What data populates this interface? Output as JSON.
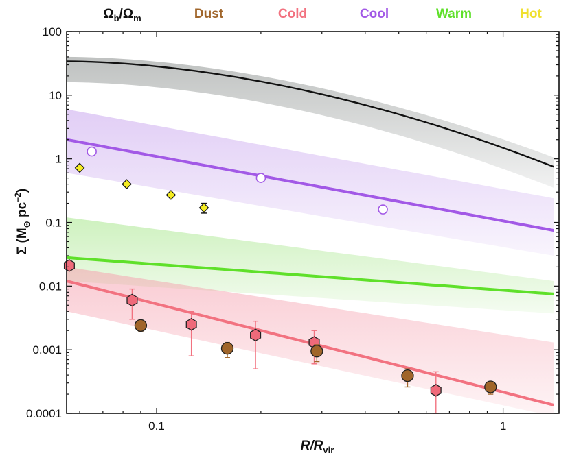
{
  "chart_data": {
    "type": "scatter",
    "x_scale": "log",
    "y_scale": "log",
    "xlim": [
      0.055,
      1.45
    ],
    "ylim": [
      0.0001,
      100
    ],
    "xlabel": {
      "main": "R/R",
      "sub": "vir"
    },
    "ylabel": {
      "main": "Σ (M",
      "sun": "⊙",
      "unit": " pc",
      "sup": "−2",
      "close": ")"
    },
    "x_ticks": [
      {
        "value": 0.1,
        "label": "0.1"
      },
      {
        "value": 1,
        "label": "1"
      }
    ],
    "y_ticks": [
      {
        "value": 100,
        "label": "100"
      },
      {
        "value": 10,
        "label": "10"
      },
      {
        "value": 1,
        "label": "1"
      },
      {
        "value": 0.1,
        "label": "0.1"
      },
      {
        "value": 0.01,
        "label": "0.01"
      },
      {
        "value": 0.001,
        "label": "0.001"
      },
      {
        "value": 0.0001,
        "label": "0.0001"
      }
    ],
    "legend": [
      {
        "label_main": "Ω",
        "label_sub": "b",
        "label_sep": "/Ω",
        "label_sub2": "m",
        "color": "#111111"
      },
      {
        "label": "Dust",
        "color": "#a0652a"
      },
      {
        "label": "Cold",
        "color": "#f27280"
      },
      {
        "label": "Cool",
        "color": "#a259e6"
      },
      {
        "label": "Warm",
        "color": "#5fe02a"
      },
      {
        "label": "Hot",
        "color": "#f0e030"
      }
    ],
    "bands": [
      {
        "name": "baryon-band",
        "color": "#8a8f8d",
        "x": [
          0.055,
          1.4
        ],
        "upper": [
          40,
          1.05
        ],
        "lower": [
          16,
          0.35
        ],
        "shape": "convex"
      },
      {
        "name": "cool-band",
        "color": "#c9a6ee",
        "x": [
          0.055,
          1.4
        ],
        "upper": [
          6.0,
          0.24
        ],
        "lower": [
          0.6,
          0.03
        ]
      },
      {
        "name": "warm-band",
        "color": "#a6e68a",
        "x": [
          0.055,
          1.4
        ],
        "upper": [
          0.12,
          0.012
        ],
        "lower": [
          0.012,
          0.0037
        ]
      },
      {
        "name": "cold-band",
        "color": "#f5a0ae",
        "x": [
          0.055,
          1.4
        ],
        "upper": [
          0.02,
          0.0013
        ],
        "lower": [
          0.004,
          9e-05
        ]
      }
    ],
    "series": [
      {
        "name": "Ωb/Ωm",
        "kind": "line",
        "color": "#111111",
        "width": 2.4,
        "shape": "convex",
        "x": [
          0.055,
          1.4
        ],
        "y": [
          34,
          0.75
        ]
      },
      {
        "name": "Cool",
        "kind": "line",
        "color": "#a259e6",
        "width": 4,
        "x": [
          0.055,
          1.4
        ],
        "y": [
          2.0,
          0.075
        ]
      },
      {
        "name": "Warm",
        "kind": "line",
        "color": "#5fe02a",
        "width": 4,
        "x": [
          0.055,
          1.4
        ],
        "y": [
          0.028,
          0.0075
        ]
      },
      {
        "name": "Cold",
        "kind": "line",
        "color": "#f27280",
        "width": 4,
        "x": [
          0.055,
          1.4
        ],
        "y": [
          0.012,
          0.000135
        ]
      },
      {
        "name": "Hot",
        "kind": "points",
        "marker": "diamond",
        "fill": "#f5ec22",
        "stroke": "#111111",
        "points": [
          {
            "x": 0.06,
            "y": 0.72
          },
          {
            "x": 0.082,
            "y": 0.4
          },
          {
            "x": 0.11,
            "y": 0.27
          },
          {
            "x": 0.137,
            "y": 0.17,
            "err_lo": 0.14,
            "err_hi": 0.2
          }
        ]
      },
      {
        "name": "Cool",
        "kind": "points",
        "marker": "circle-open",
        "fill": "#ffffff",
        "stroke": "#a259e6",
        "points": [
          {
            "x": 0.065,
            "y": 1.3
          },
          {
            "x": 0.2,
            "y": 0.5
          },
          {
            "x": 0.45,
            "y": 0.16
          }
        ]
      },
      {
        "name": "Cold",
        "kind": "points",
        "marker": "hexagon",
        "fill": "#ef6a7a",
        "stroke": "#222222",
        "err_color": "#f27280",
        "points": [
          {
            "x": 0.056,
            "y": 0.021
          },
          {
            "x": 0.085,
            "y": 0.006,
            "err_lo": 0.003,
            "err_hi": 0.009
          },
          {
            "x": 0.126,
            "y": 0.0025,
            "err_lo": 0.0008,
            "err_hi": 0.004
          },
          {
            "x": 0.193,
            "y": 0.0017,
            "err_lo": 0.0005,
            "err_hi": 0.0028
          },
          {
            "x": 0.285,
            "y": 0.0013,
            "err_lo": 0.0006,
            "err_hi": 0.002
          },
          {
            "x": 0.64,
            "y": 0.00023,
            "err_lo": 0.0001,
            "err_hi": 0.00045
          }
        ]
      },
      {
        "name": "Dust",
        "kind": "points",
        "marker": "circle",
        "fill": "#a0652a",
        "stroke": "#222222",
        "err_color": "#a0652a",
        "points": [
          {
            "x": 0.09,
            "y": 0.0024,
            "err_lo": 0.0019,
            "err_hi": 0.0029
          },
          {
            "x": 0.16,
            "y": 0.00105,
            "err_lo": 0.00075,
            "err_hi": 0.0013
          },
          {
            "x": 0.29,
            "y": 0.00095,
            "err_lo": 0.00065,
            "err_hi": 0.0012
          },
          {
            "x": 0.53,
            "y": 0.00039,
            "err_lo": 0.00026,
            "err_hi": 0.0005
          },
          {
            "x": 0.92,
            "y": 0.00026,
            "err_lo": 0.0002,
            "err_hi": 0.00031
          }
        ]
      }
    ]
  }
}
